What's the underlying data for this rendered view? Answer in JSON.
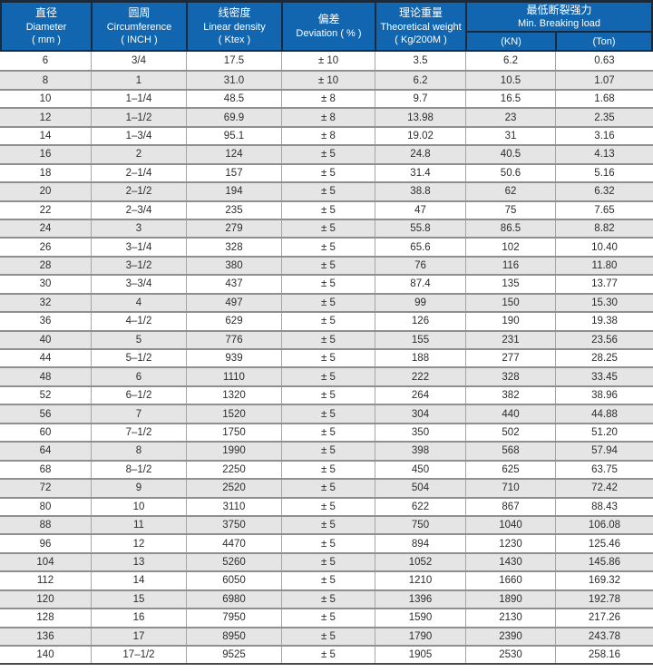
{
  "colors": {
    "header_bg": "#1266b0",
    "header_text": "#ffffff",
    "header_border": "#1b2a3a",
    "row_bg": "#ffffff",
    "row_alt_bg": "#e5e5e5",
    "row_divider": "#8f8f8f",
    "column_divider": "#a6a6a6",
    "table_bottom_border": "#4a4a4a",
    "body_text": "#2d2d2d"
  },
  "table": {
    "columns": [
      {
        "id": "diameter",
        "zh": "直径",
        "en": "Diameter",
        "unit": "( mm )"
      },
      {
        "id": "circumference",
        "zh": "圆周",
        "en": "Circumference",
        "unit": "( INCH )"
      },
      {
        "id": "linear_density",
        "zh": "线密度",
        "en": "Linear density",
        "unit": "( Ktex )"
      },
      {
        "id": "deviation",
        "zh": "偏差",
        "en": "Deviation ( % )",
        "unit": ""
      },
      {
        "id": "theoretical_weight",
        "zh": "理论重量",
        "en": "Theoretical weight",
        "unit": "( Kg/200M )"
      },
      {
        "id": "min_breaking_load",
        "zh": "最低断裂强力",
        "en": "Min. Breaking load",
        "subs": [
          "(KN)",
          "(Ton)"
        ]
      }
    ],
    "rows": [
      [
        "6",
        "3/4",
        "17.5",
        "± 10",
        "3.5",
        "6.2",
        "0.63"
      ],
      [
        "8",
        "1",
        "31.0",
        "± 10",
        "6.2",
        "10.5",
        "1.07"
      ],
      [
        "10",
        "1–1/4",
        "48.5",
        "± 8",
        "9.7",
        "16.5",
        "1.68"
      ],
      [
        "12",
        "1–1/2",
        "69.9",
        "± 8",
        "13.98",
        "23",
        "2.35"
      ],
      [
        "14",
        "1–3/4",
        "95.1",
        "± 8",
        "19.02",
        "31",
        "3.16"
      ],
      [
        "16",
        "2",
        "124",
        "± 5",
        "24.8",
        "40.5",
        "4.13"
      ],
      [
        "18",
        "2–1/4",
        "157",
        "± 5",
        "31.4",
        "50.6",
        "5.16"
      ],
      [
        "20",
        "2–1/2",
        "194",
        "± 5",
        "38.8",
        "62",
        "6.32"
      ],
      [
        "22",
        "2–3/4",
        "235",
        "± 5",
        "47",
        "75",
        "7.65"
      ],
      [
        "24",
        "3",
        "279",
        "± 5",
        "55.8",
        "86.5",
        "8.82"
      ],
      [
        "26",
        "3–1/4",
        "328",
        "± 5",
        "65.6",
        "102",
        "10.40"
      ],
      [
        "28",
        "3–1/2",
        "380",
        "± 5",
        "76",
        "116",
        "11.80"
      ],
      [
        "30",
        "3–3/4",
        "437",
        "± 5",
        "87.4",
        "135",
        "13.77"
      ],
      [
        "32",
        "4",
        "497",
        "± 5",
        "99",
        "150",
        "15.30"
      ],
      [
        "36",
        "4–1/2",
        "629",
        "± 5",
        "126",
        "190",
        "19.38"
      ],
      [
        "40",
        "5",
        "776",
        "± 5",
        "155",
        "231",
        "23.56"
      ],
      [
        "44",
        "5–1/2",
        "939",
        "± 5",
        "188",
        "277",
        "28.25"
      ],
      [
        "48",
        "6",
        "1110",
        "± 5",
        "222",
        "328",
        "33.45"
      ],
      [
        "52",
        "6–1/2",
        "1320",
        "± 5",
        "264",
        "382",
        "38.96"
      ],
      [
        "56",
        "7",
        "1520",
        "± 5",
        "304",
        "440",
        "44.88"
      ],
      [
        "60",
        "7–1/2",
        "1750",
        "± 5",
        "350",
        "502",
        "51.20"
      ],
      [
        "64",
        "8",
        "1990",
        "± 5",
        "398",
        "568",
        "57.94"
      ],
      [
        "68",
        "8–1/2",
        "2250",
        "± 5",
        "450",
        "625",
        "63.75"
      ],
      [
        "72",
        "9",
        "2520",
        "± 5",
        "504",
        "710",
        "72.42"
      ],
      [
        "80",
        "10",
        "3110",
        "± 5",
        "622",
        "867",
        "88.43"
      ],
      [
        "88",
        "11",
        "3750",
        "± 5",
        "750",
        "1040",
        "106.08"
      ],
      [
        "96",
        "12",
        "4470",
        "± 5",
        "894",
        "1230",
        "125.46"
      ],
      [
        "104",
        "13",
        "5260",
        "± 5",
        "1052",
        "1430",
        "145.86"
      ],
      [
        "112",
        "14",
        "6050",
        "± 5",
        "1210",
        "1660",
        "169.32"
      ],
      [
        "120",
        "15",
        "6980",
        "± 5",
        "1396",
        "1890",
        "192.78"
      ],
      [
        "128",
        "16",
        "7950",
        "± 5",
        "1590",
        "2130",
        "217.26"
      ],
      [
        "136",
        "17",
        "8950",
        "± 5",
        "1790",
        "2390",
        "243.78"
      ],
      [
        "140",
        "17–1/2",
        "9525",
        "± 5",
        "1905",
        "2530",
        "258.16"
      ]
    ]
  }
}
